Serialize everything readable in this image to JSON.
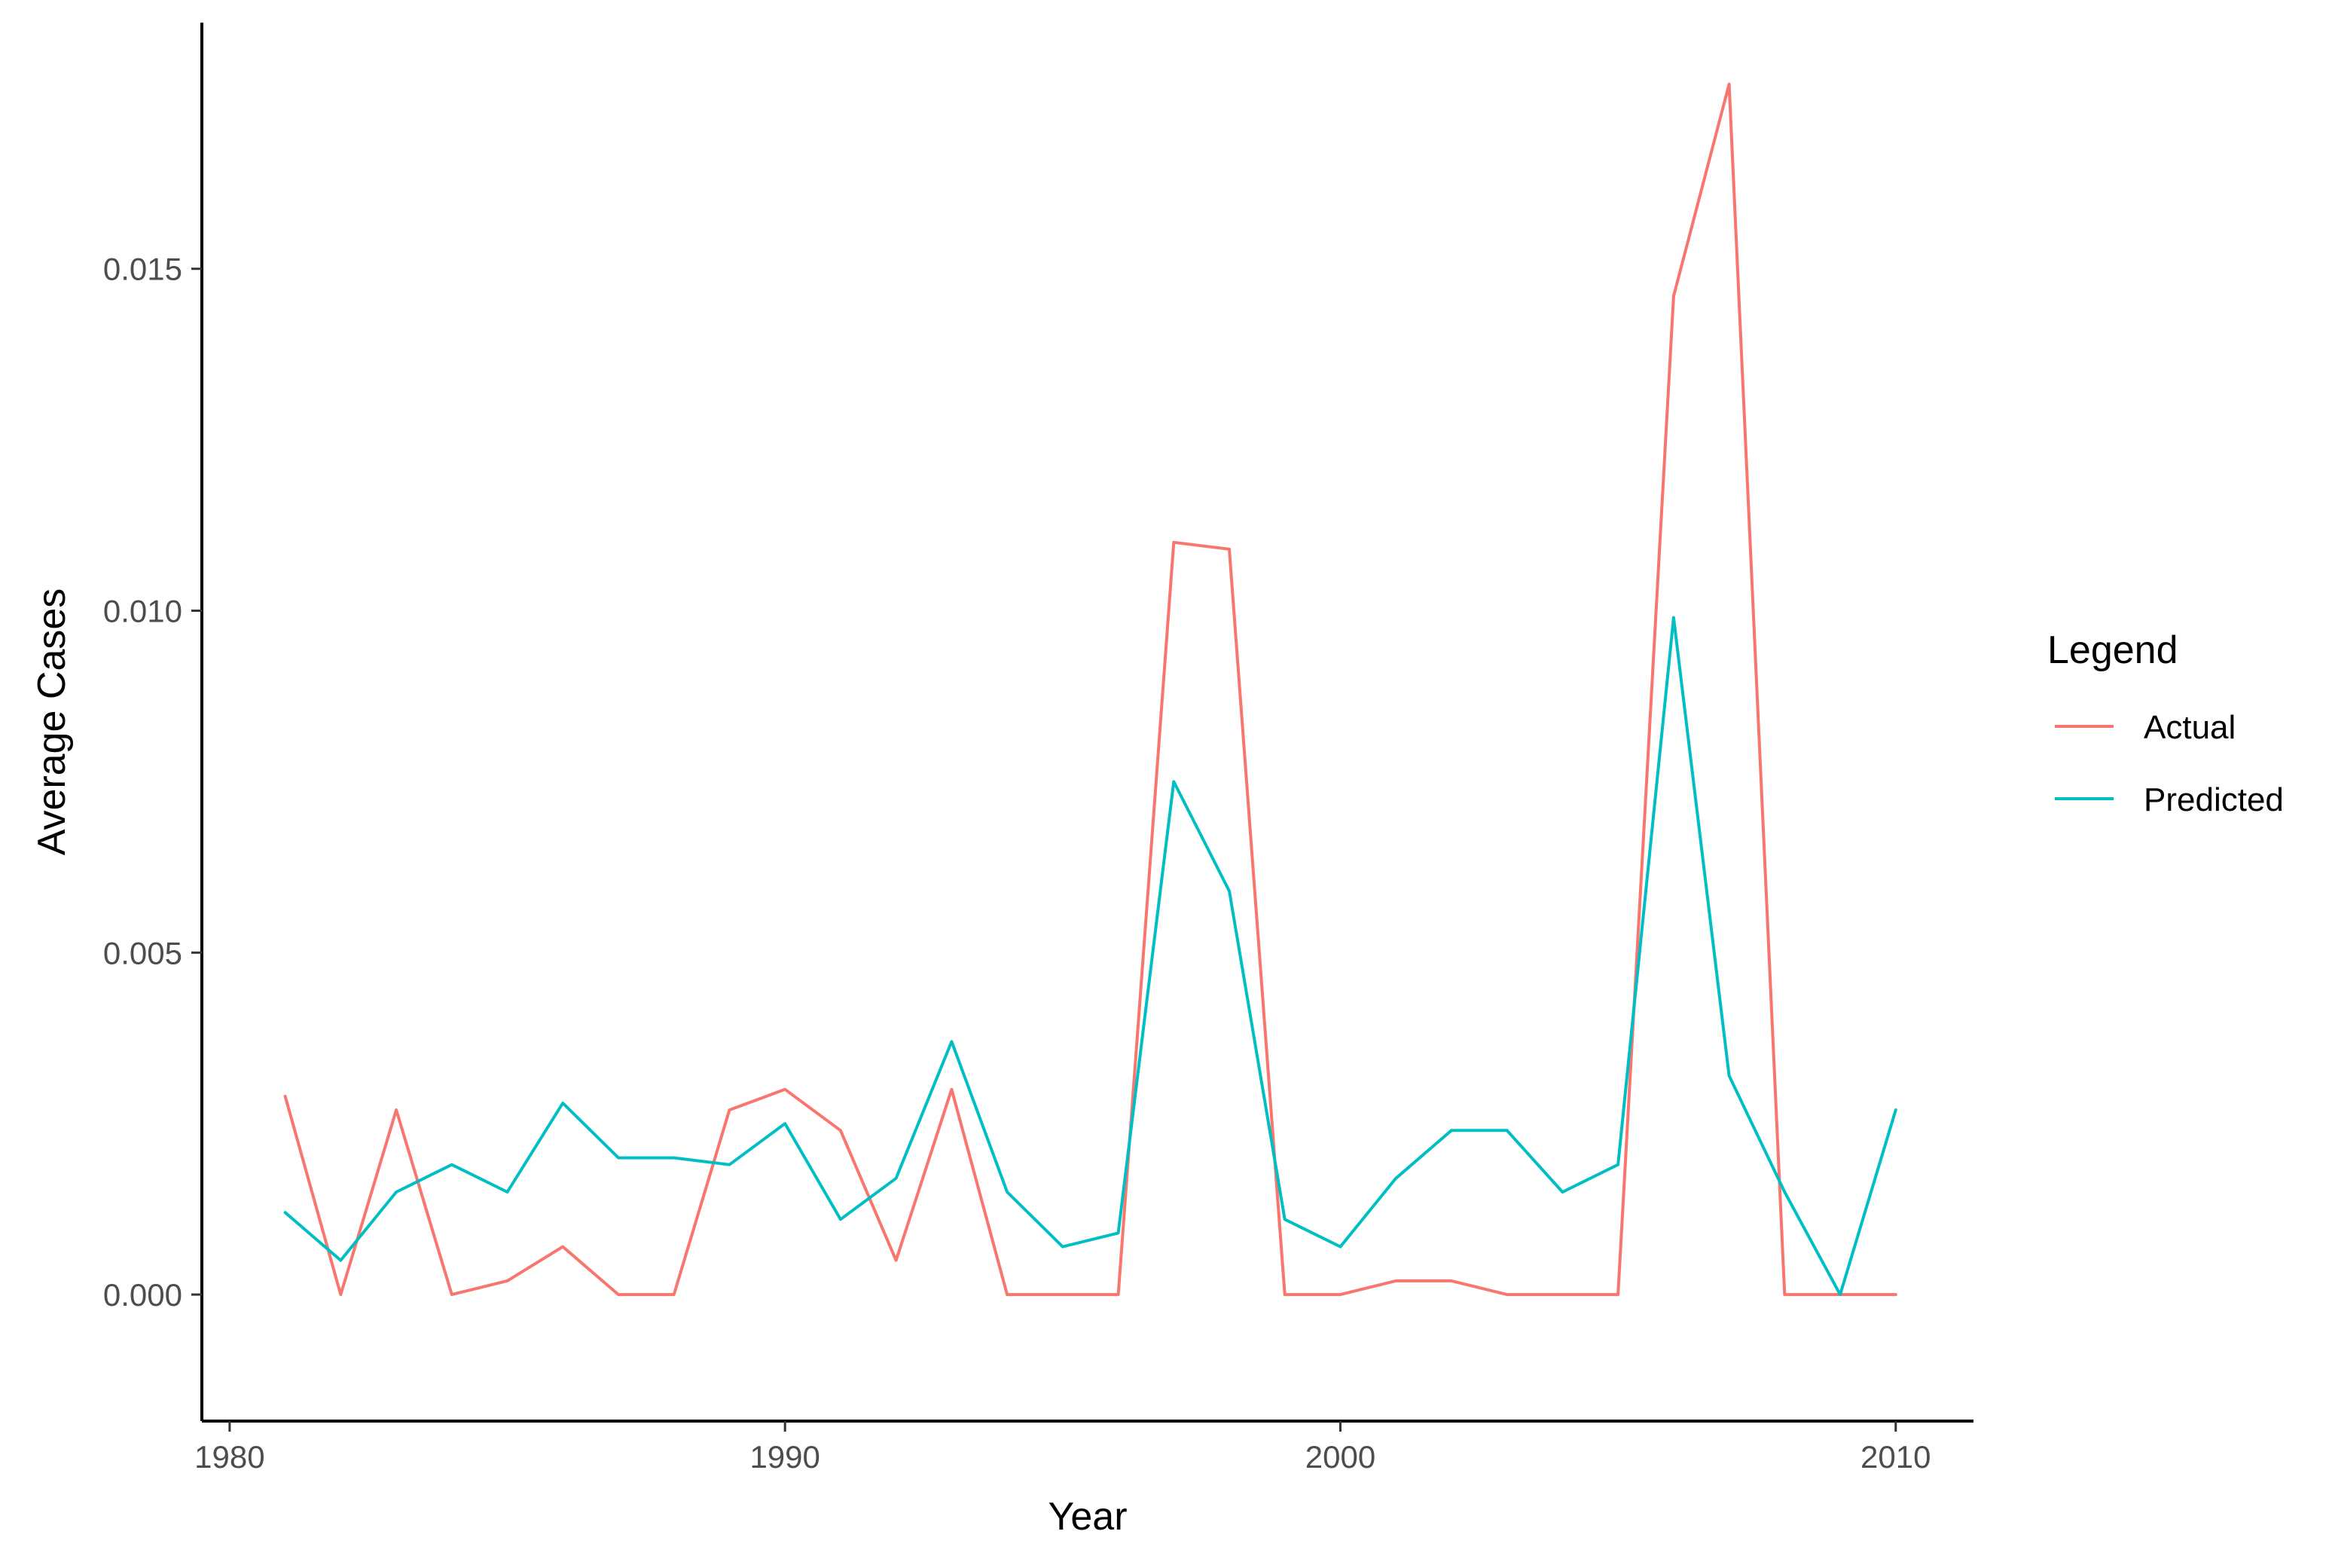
{
  "chart_data": {
    "type": "line",
    "title": "",
    "xlabel": "Year",
    "ylabel": "Average Cases",
    "xlim": [
      1979.5,
      2011.4
    ],
    "ylim": [
      -0.00185,
      0.0186
    ],
    "x_ticks": [
      {
        "value": 1980,
        "label": "1980"
      },
      {
        "value": 1990,
        "label": "1990"
      },
      {
        "value": 2000,
        "label": "2000"
      },
      {
        "value": 2010,
        "label": "2010"
      }
    ],
    "y_ticks": [
      {
        "value": 0.0,
        "label": "0.000"
      },
      {
        "value": 0.005,
        "label": "0.005"
      },
      {
        "value": 0.01,
        "label": "0.010"
      },
      {
        "value": 0.015,
        "label": "0.015"
      }
    ],
    "grid": false,
    "legend": {
      "title": "Legend",
      "position": "right"
    },
    "x": [
      1981,
      1982,
      1983,
      1984,
      1985,
      1986,
      1987,
      1988,
      1989,
      1990,
      1991,
      1992,
      1993,
      1994,
      1995,
      1996,
      1997,
      1998,
      1999,
      2000,
      2001,
      2002,
      2003,
      2004,
      2005,
      2006,
      2007,
      2008,
      2009,
      2010
    ],
    "series": [
      {
        "name": "Actual",
        "color": "#F8766D",
        "values": [
          0.0029,
          0.0,
          0.0027,
          0.0,
          0.0002,
          0.0007,
          0.0,
          0.0,
          0.0027,
          0.003,
          0.0024,
          0.0005,
          0.003,
          0.0,
          0.0,
          0.0,
          0.011,
          0.0109,
          0.0,
          0.0,
          0.0002,
          0.0002,
          0.0,
          0.0,
          0.0,
          0.0146,
          0.0177,
          0.0,
          0.0,
          0.0
        ]
      },
      {
        "name": "Predicted",
        "color": "#00BFC4",
        "values": [
          0.0012,
          0.0005,
          0.0015,
          0.0019,
          0.0015,
          0.0028,
          0.002,
          0.002,
          0.0019,
          0.0025,
          0.0011,
          0.0017,
          0.0037,
          0.0015,
          0.0007,
          0.0009,
          0.0075,
          0.0059,
          0.0011,
          0.0007,
          0.0017,
          0.0024,
          0.0024,
          0.0015,
          0.0019,
          0.0099,
          0.0032,
          0.0015,
          0.0,
          0.0027
        ]
      }
    ]
  }
}
